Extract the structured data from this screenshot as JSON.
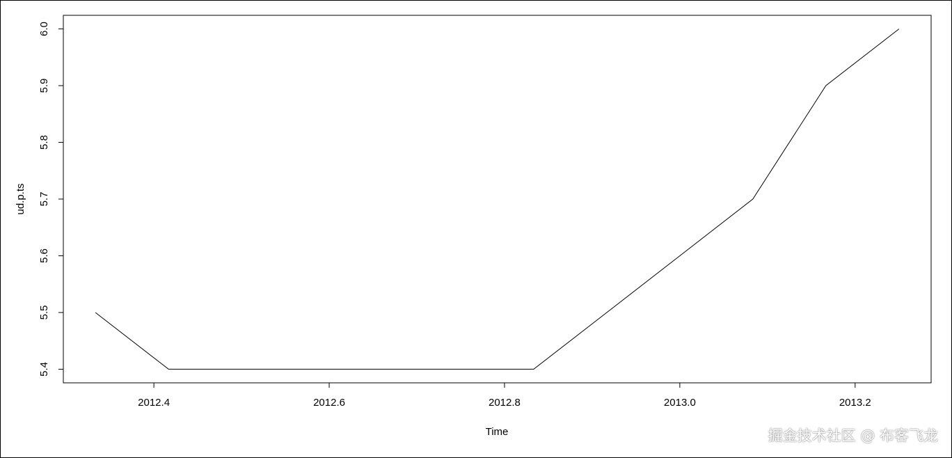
{
  "chart_data": {
    "type": "line",
    "title": "",
    "xlabel": "Time",
    "ylabel": "ud.p.ts",
    "x": [
      2012.3333,
      2012.4167,
      2012.5,
      2012.5833,
      2012.6667,
      2012.75,
      2012.8333,
      2012.9167,
      2013.0,
      2013.0833,
      2013.1667,
      2013.25
    ],
    "values": [
      5.5,
      5.4,
      5.4,
      5.4,
      5.4,
      5.4,
      5.4,
      5.5,
      5.6,
      5.7,
      5.9,
      6.0
    ],
    "xlim": [
      2012.2967,
      2013.2867
    ],
    "ylim": [
      5.376,
      6.024
    ],
    "xticks": [
      "2012.4",
      "2012.6",
      "2012.8",
      "2013.0",
      "2013.2"
    ],
    "yticks": [
      "5.4",
      "5.5",
      "5.6",
      "5.7",
      "5.8",
      "5.9",
      "6.0"
    ],
    "grid": false,
    "line_color": "#000000"
  },
  "watermark": "掘金技术社区 @ 布客飞龙"
}
